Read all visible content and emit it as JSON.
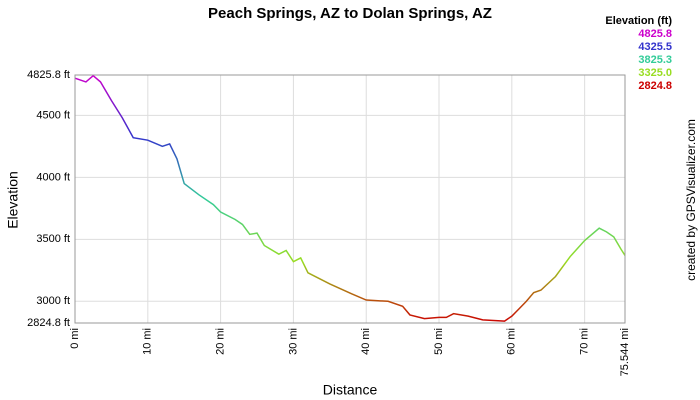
{
  "chart_data": {
    "type": "line",
    "title": "Peach Springs, AZ to Dolan Springs, AZ",
    "x_label": "Distance",
    "y_label": "Elevation",
    "credit": "created by GPSVisualizer.com",
    "grid": true,
    "xlim": [
      0,
      75.544
    ],
    "ylim": [
      2824.8,
      4825.8
    ],
    "xticks": [
      {
        "value": 0,
        "label": "0 mi"
      },
      {
        "value": 10,
        "label": "10 mi"
      },
      {
        "value": 20,
        "label": "20 mi"
      },
      {
        "value": 30,
        "label": "30 mi"
      },
      {
        "value": 40,
        "label": "40 mi"
      },
      {
        "value": 50,
        "label": "50 mi"
      },
      {
        "value": 60,
        "label": "60 mi"
      },
      {
        "value": 70,
        "label": "70 mi"
      },
      {
        "value": 75.544,
        "label": "75.544 mi"
      }
    ],
    "yticks": [
      {
        "value": 2824.8,
        "label": "2824.8 ft"
      },
      {
        "value": 3000,
        "label": "3000 ft"
      },
      {
        "value": 3500,
        "label": "3500 ft"
      },
      {
        "value": 4000,
        "label": "4000 ft"
      },
      {
        "value": 4500,
        "label": "4500 ft"
      },
      {
        "value": 4825.8,
        "label": "4825.8 ft"
      }
    ],
    "color_scale": {
      "title": "Elevation (ft)",
      "stops": [
        {
          "value": 4825.8,
          "color": "#cc00cc"
        },
        {
          "value": 4325.5,
          "color": "#3333cc"
        },
        {
          "value": 3825.3,
          "color": "#33cc99"
        },
        {
          "value": 3325.0,
          "label": "3325.0",
          "color": "#99dd22"
        },
        {
          "value": 2824.8,
          "color": "#cc0000"
        }
      ]
    },
    "x": [
      0,
      1.5,
      2.5,
      3.5,
      5,
      6.5,
      8,
      10,
      12,
      13,
      14,
      15,
      17,
      19,
      20,
      22,
      23,
      24,
      25,
      26,
      28,
      29,
      30,
      31,
      32,
      35,
      38,
      40,
      43,
      45,
      46,
      48,
      50,
      51,
      52,
      54,
      56,
      59,
      60,
      61,
      62,
      63,
      64,
      66,
      68,
      70,
      72,
      73,
      74,
      75,
      75.544
    ],
    "values": [
      4800,
      4770,
      4820,
      4770,
      4620,
      4480,
      4320,
      4300,
      4250,
      4270,
      4150,
      3950,
      3860,
      3780,
      3720,
      3660,
      3620,
      3540,
      3550,
      3450,
      3380,
      3410,
      3320,
      3350,
      3230,
      3140,
      3060,
      3010,
      3000,
      2960,
      2890,
      2860,
      2870,
      2870,
      2900,
      2880,
      2850,
      2840,
      2880,
      2940,
      3000,
      3070,
      3090,
      3200,
      3360,
      3490,
      3590,
      3560,
      3520,
      3420,
      3370
    ]
  }
}
